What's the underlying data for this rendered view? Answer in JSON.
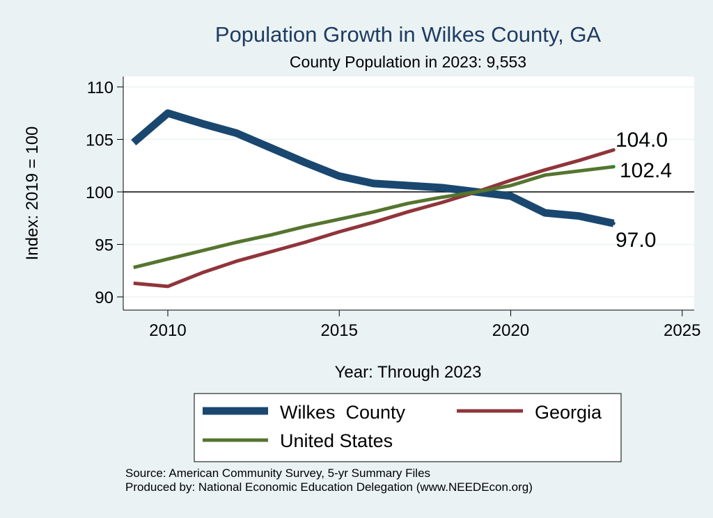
{
  "chart_data": {
    "type": "line",
    "title": "Population Growth in Wilkes County, GA",
    "subtitle": "County Population in 2023: 9,553",
    "xlabel": "Year: Through 2023",
    "ylabel": "Index: 2019 = 100",
    "xlim": [
      2009,
      2025
    ],
    "ylim": [
      89,
      110
    ],
    "x_ticks": [
      "2010",
      "2015",
      "2020",
      "2025"
    ],
    "y_ticks": [
      "90",
      "95",
      "100",
      "105",
      "110"
    ],
    "grid": true,
    "reference_line": 100,
    "legend_position": "bottom",
    "x": [
      2009,
      2010,
      2011,
      2012,
      2013,
      2014,
      2015,
      2016,
      2017,
      2018,
      2019,
      2020,
      2021,
      2022,
      2023
    ],
    "series": [
      {
        "name": "Wilkes  County",
        "color": "#1a476f",
        "values": [
          104.7,
          107.5,
          106.5,
          105.6,
          104.2,
          102.8,
          101.5,
          100.8,
          100.6,
          100.4,
          100.0,
          99.6,
          98.0,
          97.7,
          97.0
        ],
        "end_label": "97.0"
      },
      {
        "name": "Georgia",
        "color": "#90353b",
        "values": [
          91.3,
          91.0,
          92.3,
          93.4,
          94.3,
          95.2,
          96.2,
          97.1,
          98.1,
          99.0,
          100.0,
          101.1,
          102.1,
          103.0,
          104.0
        ],
        "end_label": "104.0"
      },
      {
        "name": "United States",
        "color": "#55752f",
        "values": [
          92.8,
          93.6,
          94.4,
          95.2,
          95.9,
          96.7,
          97.4,
          98.1,
          98.9,
          99.5,
          100.0,
          100.6,
          101.6,
          102.0,
          102.4
        ],
        "end_label": "102.4"
      }
    ]
  },
  "notes": {
    "source": "Source: American Community Survey, 5-yr Summary Files",
    "produced_by": "Produced by: National Economic Education Delegation (www.NEEDEcon.org)"
  }
}
